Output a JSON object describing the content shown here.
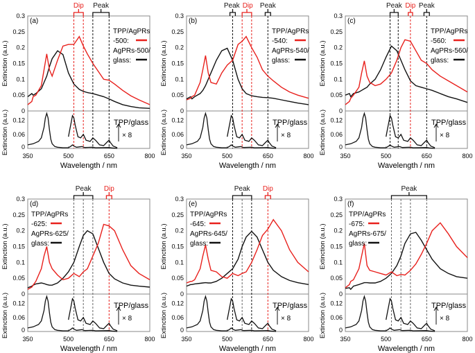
{
  "chart_data": {
    "type": "line",
    "xlabel": "Wavelength / nm",
    "ylabel": "Extinction (a.u.)",
    "xlim": [
      350,
      800
    ],
    "xticks": [
      "350",
      "500",
      "650",
      "800"
    ],
    "top_ylim": [
      0,
      0.3
    ],
    "top_yticks": [
      "0",
      "0.05",
      "0.1",
      "0.15",
      "0.2",
      "0.25",
      "0.3"
    ],
    "bottom_ylim": [
      0,
      0.16
    ],
    "bottom_yticks": [
      "0",
      "0.06",
      "0.12"
    ],
    "colors": {
      "hybrid": "#e8201c",
      "plasmon": "#111111",
      "marker_gray": "#666666"
    },
    "x": [
      350,
      365,
      370,
      380,
      400,
      410,
      420,
      430,
      440,
      460,
      480,
      500,
      520,
      540,
      555,
      570,
      590,
      610,
      630,
      650,
      670,
      700,
      730,
      760,
      800
    ],
    "tpp_glass": {
      "label": "TPP/glass",
      "scale_label": "× 8",
      "x1": [
        350,
        370,
        390,
        400,
        410,
        415,
        420,
        425,
        430,
        435,
        440,
        450,
        460,
        480,
        500,
        510,
        515,
        520,
        530,
        550,
        560,
        590,
        600,
        650,
        660,
        680
      ],
      "y1": [
        0.015,
        0.02,
        0.03,
        0.045,
        0.09,
        0.13,
        0.15,
        0.13,
        0.08,
        0.04,
        0.02,
        0.008,
        0.005,
        0.003,
        0.003,
        0.01,
        0.015,
        0.01,
        0.005,
        0.008,
        0.004,
        0.005,
        0.003,
        0.004,
        0.002,
        0
      ],
      "x8": [
        500,
        505,
        510,
        515,
        520,
        525,
        535,
        545,
        555,
        565,
        580,
        590,
        600,
        615,
        630,
        645,
        650,
        655,
        665,
        680
      ],
      "y8": [
        0.05,
        0.08,
        0.11,
        0.14,
        0.13,
        0.1,
        0.05,
        0.045,
        0.06,
        0.035,
        0.03,
        0.045,
        0.035,
        0.015,
        0.012,
        0.03,
        0.035,
        0.025,
        0.01,
        0.003
      ]
    },
    "panels": [
      {
        "label": "(a)",
        "legend": [
          "TPP/AgPRs",
          "-500:",
          "AgPRs-500/",
          "glass:"
        ],
        "legend_side": "right",
        "red": [
          0.02,
          0.03,
          0.045,
          0.05,
          0.08,
          0.13,
          0.18,
          0.13,
          0.11,
          0.16,
          0.205,
          0.21,
          0.21,
          0.235,
          0.205,
          0.18,
          0.15,
          0.125,
          0.1,
          0.097,
          0.085,
          0.065,
          0.048,
          0.035,
          0.02
        ],
        "black": [
          0.045,
          0.055,
          0.05,
          0.055,
          0.07,
          0.09,
          0.11,
          0.14,
          0.165,
          0.19,
          0.178,
          0.12,
          0.085,
          0.068,
          0.062,
          0.058,
          0.055,
          0.05,
          0.045,
          0.038,
          0.03,
          0.02,
          0.014,
          0.01,
          0.008
        ],
        "markers": [
          {
            "wl": 520,
            "kind": "dip"
          },
          {
            "wl": 555,
            "kind": "dip"
          },
          {
            "wl": 590,
            "kind": "peak"
          },
          {
            "wl": 650,
            "kind": "peak"
          }
        ],
        "brackets": [
          {
            "label": "Dip",
            "kind": "dip",
            "from": 520,
            "to": 555
          },
          {
            "label": "Peak",
            "kind": "peak",
            "from": 590,
            "to": 650
          }
        ]
      },
      {
        "label": "(b)",
        "legend": [
          "TPP/AgPRs",
          "-540:",
          "AgPRs-540/",
          "glass:"
        ],
        "legend_side": "right",
        "red": [
          0.035,
          0.04,
          0.045,
          0.05,
          0.09,
          0.13,
          0.175,
          0.12,
          0.09,
          0.085,
          0.12,
          0.145,
          0.16,
          0.21,
          0.22,
          0.235,
          0.2,
          0.17,
          0.13,
          0.11,
          0.095,
          0.075,
          0.06,
          0.05,
          0.04
        ],
        "black": [
          0.038,
          0.045,
          0.038,
          0.045,
          0.055,
          0.065,
          0.08,
          0.1,
          0.12,
          0.16,
          0.19,
          0.198,
          0.16,
          0.1,
          0.07,
          0.055,
          0.048,
          0.045,
          0.043,
          0.042,
          0.04,
          0.035,
          0.03,
          0.025,
          0.02
        ],
        "markers": [
          {
            "wl": 520,
            "kind": "peak"
          },
          {
            "wl": 555,
            "kind": "dip"
          },
          {
            "wl": 590,
            "kind": "dip"
          },
          {
            "wl": 650,
            "kind": "peak"
          }
        ],
        "brackets": [
          {
            "label": "Peak",
            "kind": "peak",
            "from": 510,
            "to": 530
          },
          {
            "label": "Dip",
            "kind": "dip",
            "from": 555,
            "to": 590
          },
          {
            "label": "Peak",
            "kind": "peak",
            "from": 640,
            "to": 660
          }
        ]
      },
      {
        "label": "(c)",
        "legend": [
          "TPP/AgPRs",
          "-560:",
          "AgPRs-560/",
          "glass:"
        ],
        "legend_side": "right",
        "red": [
          0.02,
          0.03,
          0.04,
          0.05,
          0.075,
          0.12,
          0.158,
          0.11,
          0.09,
          0.08,
          0.085,
          0.1,
          0.12,
          0.16,
          0.2,
          0.225,
          0.22,
          0.19,
          0.16,
          0.15,
          0.13,
          0.11,
          0.095,
          0.08,
          0.06
        ],
        "black": [
          0.05,
          0.055,
          0.045,
          0.055,
          0.06,
          0.065,
          0.07,
          0.075,
          0.085,
          0.1,
          0.13,
          0.17,
          0.205,
          0.19,
          0.16,
          0.13,
          0.095,
          0.08,
          0.075,
          0.07,
          0.065,
          0.055,
          0.045,
          0.038,
          0.027
        ],
        "markers": [
          {
            "wl": 515,
            "kind": "peak"
          },
          {
            "wl": 545,
            "kind": "peak"
          },
          {
            "wl": 590,
            "kind": "dip"
          },
          {
            "wl": 650,
            "kind": "peak"
          }
        ],
        "brackets": [
          {
            "label": "Peak",
            "kind": "peak",
            "from": 515,
            "to": 545
          },
          {
            "label": "Dip",
            "kind": "dip",
            "from": 582,
            "to": 598
          },
          {
            "label": "Peak",
            "kind": "peak",
            "from": 640,
            "to": 660
          }
        ]
      },
      {
        "label": "(d)",
        "legend": [
          "TPP/AgPRs",
          "-625:",
          "AgPRs-625/",
          "glass:"
        ],
        "legend_side": "left",
        "red": [
          0.015,
          0.022,
          0.028,
          0.04,
          0.08,
          0.12,
          0.15,
          0.1,
          0.08,
          0.06,
          0.045,
          0.05,
          0.065,
          0.055,
          0.07,
          0.08,
          0.12,
          0.16,
          0.22,
          0.215,
          0.2,
          0.14,
          0.09,
          0.065,
          0.045
        ],
        "black": [
          0.02,
          0.025,
          0.028,
          0.032,
          0.035,
          0.033,
          0.03,
          0.028,
          0.028,
          0.035,
          0.05,
          0.07,
          0.1,
          0.15,
          0.185,
          0.2,
          0.19,
          0.145,
          0.1,
          0.065,
          0.048,
          0.035,
          0.028,
          0.025,
          0.022
        ],
        "markers": [
          {
            "wl": 520,
            "kind": "gray"
          },
          {
            "wl": 555,
            "kind": "gray"
          },
          {
            "wl": 590,
            "kind": "gray"
          },
          {
            "wl": 650,
            "kind": "dip"
          }
        ],
        "brackets": [
          {
            "label": "Peak",
            "kind": "peak",
            "from": 520,
            "to": 590
          },
          {
            "label": "Dip",
            "kind": "dip",
            "from": 640,
            "to": 660
          }
        ]
      },
      {
        "label": "(e)",
        "legend": [
          "TPP/AgPRs",
          "-645:",
          "AgPRs-645/",
          "glass:"
        ],
        "legend_side": "left",
        "red": [
          0.035,
          0.04,
          0.04,
          0.045,
          0.08,
          0.12,
          0.155,
          0.11,
          0.075,
          0.07,
          0.055,
          0.05,
          0.065,
          0.058,
          0.065,
          0.07,
          0.1,
          0.14,
          0.185,
          0.205,
          0.235,
          0.2,
          0.14,
          0.1,
          0.07
        ],
        "black": [
          0.025,
          0.03,
          0.03,
          0.032,
          0.034,
          0.035,
          0.036,
          0.035,
          0.035,
          0.04,
          0.05,
          0.065,
          0.08,
          0.11,
          0.15,
          0.18,
          0.198,
          0.18,
          0.14,
          0.1,
          0.075,
          0.055,
          0.043,
          0.036,
          0.03
        ],
        "markers": [
          {
            "wl": 520,
            "kind": "peak"
          },
          {
            "wl": 555,
            "kind": "gray"
          },
          {
            "wl": 590,
            "kind": "peak"
          },
          {
            "wl": 650,
            "kind": "dip"
          }
        ],
        "brackets": [
          {
            "label": "Peak",
            "kind": "peak",
            "from": 520,
            "to": 590
          },
          {
            "label": "Dip",
            "kind": "dip",
            "from": 640,
            "to": 660
          }
        ]
      },
      {
        "label": "(f)",
        "legend": [
          "TPP/AgPRs",
          "-675:",
          "AgPRs-675/",
          "glass:"
        ],
        "legend_side": "left",
        "red": [
          0.02,
          0.03,
          0.04,
          0.045,
          0.08,
          0.12,
          0.16,
          0.09,
          0.075,
          0.07,
          0.065,
          0.06,
          0.07,
          0.058,
          0.062,
          0.06,
          0.075,
          0.095,
          0.125,
          0.16,
          0.2,
          0.225,
          0.19,
          0.15,
          0.115
        ],
        "black": [
          0.018,
          0.02,
          0.015,
          0.025,
          0.03,
          0.033,
          0.036,
          0.036,
          0.035,
          0.035,
          0.04,
          0.05,
          0.065,
          0.09,
          0.12,
          0.16,
          0.19,
          0.195,
          0.17,
          0.14,
          0.11,
          0.08,
          0.065,
          0.055,
          0.05
        ],
        "markers": [
          {
            "wl": 520,
            "kind": "gray"
          },
          {
            "wl": 555,
            "kind": "gray"
          },
          {
            "wl": 590,
            "kind": "gray"
          },
          {
            "wl": 650,
            "kind": "gray"
          }
        ],
        "brackets": [
          {
            "label": "Peak",
            "kind": "peak",
            "from": 520,
            "to": 650
          }
        ]
      }
    ]
  }
}
